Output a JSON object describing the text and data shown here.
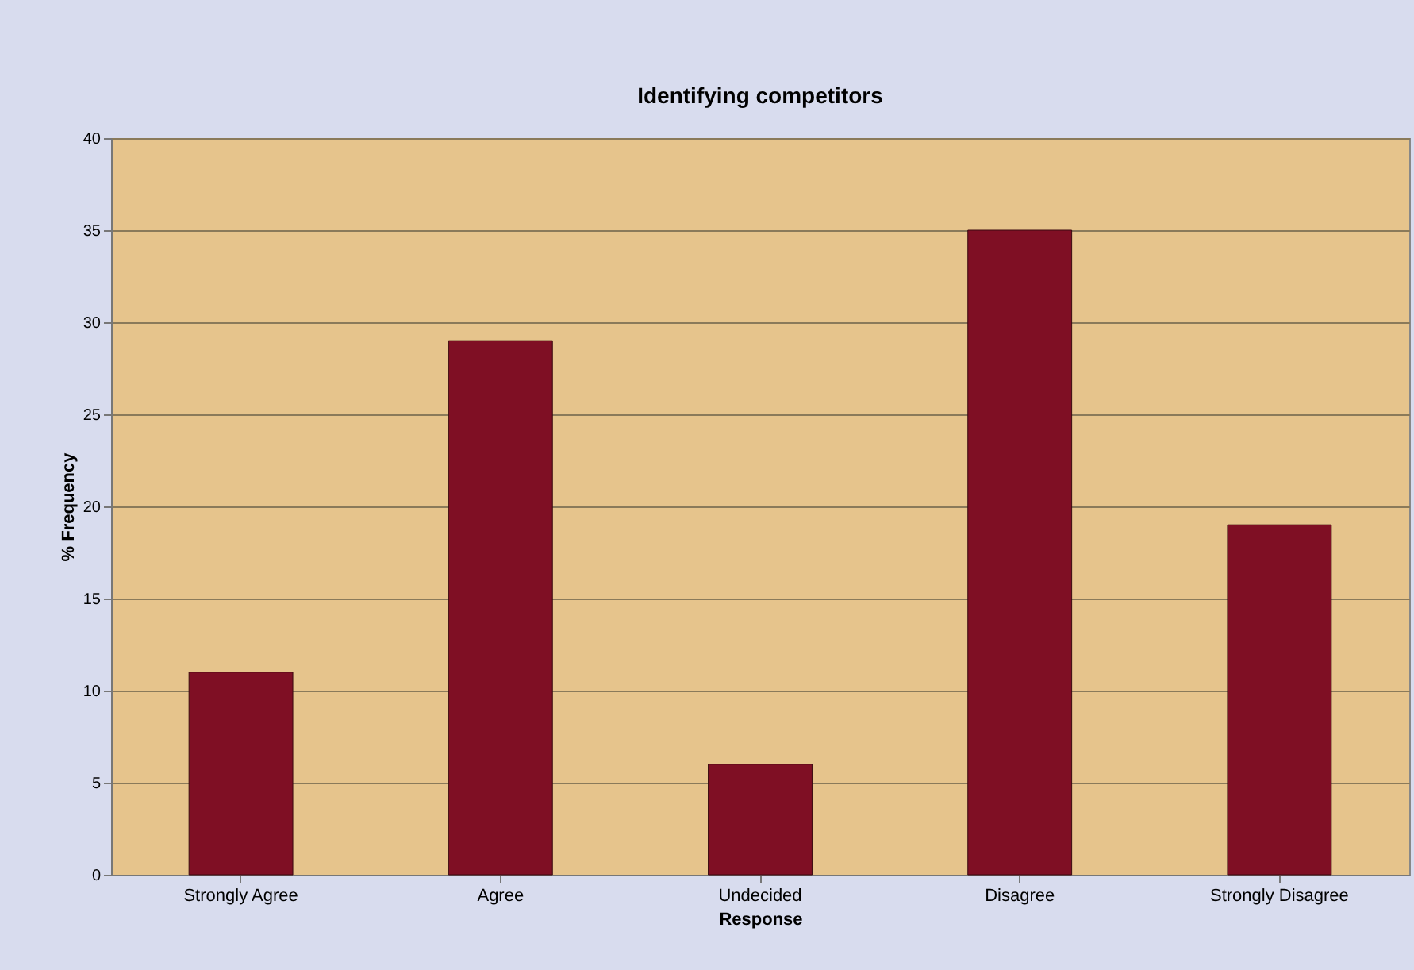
{
  "chart_data": {
    "type": "bar",
    "title": "Identifying competitors",
    "xlabel": "Response",
    "ylabel": "% Frequency",
    "categories": [
      "Strongly Agree",
      "Agree",
      "Undecided",
      "Disagree",
      "Strongly Disagree"
    ],
    "values": [
      11,
      29,
      6,
      35,
      19
    ],
    "color": "#7f0f24",
    "ylim": [
      0,
      40
    ],
    "yticks": [
      0,
      5,
      10,
      15,
      20,
      25,
      30,
      35,
      40
    ],
    "grid": "y"
  }
}
